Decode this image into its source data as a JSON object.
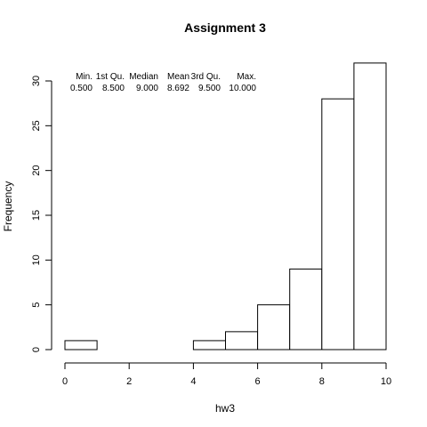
{
  "chart_data": {
    "type": "bar",
    "title": "Assignment 3",
    "xlabel": "hw3",
    "ylabel": "Frequency",
    "xlim": [
      0,
      10
    ],
    "ylim": [
      0,
      32
    ],
    "bins": [
      {
        "x0": 0,
        "x1": 1,
        "count": 1
      },
      {
        "x0": 1,
        "x1": 2,
        "count": 0
      },
      {
        "x0": 2,
        "x1": 3,
        "count": 0
      },
      {
        "x0": 3,
        "x1": 4,
        "count": 0
      },
      {
        "x0": 4,
        "x1": 5,
        "count": 1
      },
      {
        "x0": 5,
        "x1": 6,
        "count": 2
      },
      {
        "x0": 6,
        "x1": 7,
        "count": 5
      },
      {
        "x0": 7,
        "x1": 8,
        "count": 9
      },
      {
        "x0": 8,
        "x1": 9,
        "count": 28
      },
      {
        "x0": 9,
        "x1": 10,
        "count": 32
      }
    ],
    "x_ticks": [
      "0",
      "2",
      "4",
      "6",
      "8",
      "10"
    ],
    "y_ticks": [
      "0",
      "5",
      "10",
      "15",
      "20",
      "25",
      "30"
    ],
    "grid": false,
    "summary": {
      "headers": [
        "Min.",
        "1st Qu.",
        "Median",
        "Mean",
        "3rd Qu.",
        "Max."
      ],
      "values": [
        "0.500",
        "8.500",
        "9.000",
        "8.692",
        "9.500",
        "10.000"
      ]
    },
    "colors": {
      "bar_fill": "#ffffff",
      "bar_stroke": "#000000",
      "background": "#ffffff"
    }
  }
}
